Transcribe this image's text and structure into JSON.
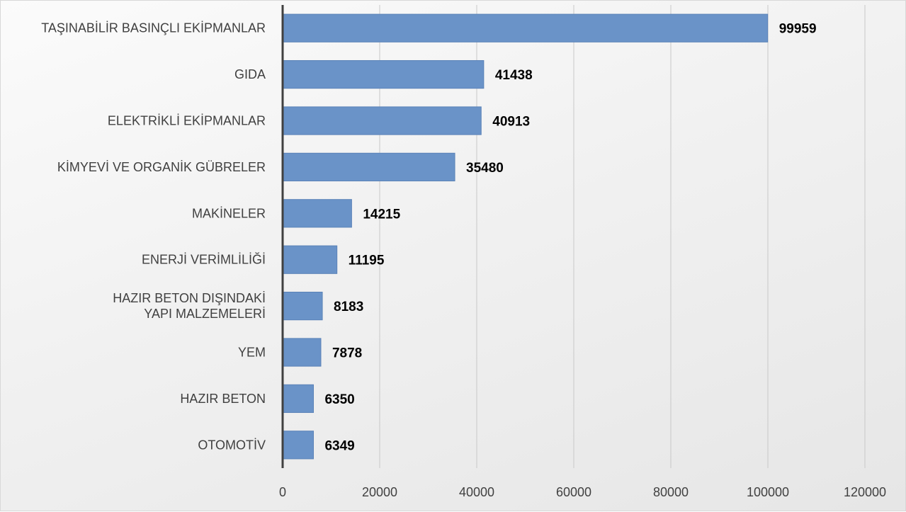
{
  "chart_data": {
    "type": "bar",
    "orientation": "horizontal",
    "categories": [
      "TAŞINABİLİR BASINÇLI EKİPMANLAR",
      "GIDA",
      "ELEKTRİKLİ EKİPMANLAR",
      "KİMYEVİ VE ORGANİK GÜBRELER",
      "MAKİNELER",
      "ENERJİ VERİMLİLİĞİ",
      [
        "HAZIR BETON DIŞINDAKİ",
        "YAPI MALZEMELERİ"
      ],
      "YEM",
      "HAZIR BETON",
      "OTOMOTİV"
    ],
    "values": [
      99959,
      41438,
      40913,
      35480,
      14215,
      11195,
      8183,
      7878,
      6350,
      6349
    ],
    "data_labels": [
      "99959",
      "41438",
      "40913",
      "35480",
      "14215",
      "11195",
      "8183",
      "7878",
      "6350",
      "6349"
    ],
    "xlim": [
      0,
      120000
    ],
    "x_ticks": [
      "0",
      "20000",
      "40000",
      "60000",
      "80000",
      "100000",
      "120000"
    ],
    "title": "",
    "xlabel": "",
    "ylabel": "",
    "grid": "vertical gridlines",
    "legend": "none",
    "colors": {
      "bar_fill": "#6a93c8",
      "bar_stroke": "#5b83b8",
      "gridline": "#c8c8c8",
      "axis": "#404040"
    }
  }
}
